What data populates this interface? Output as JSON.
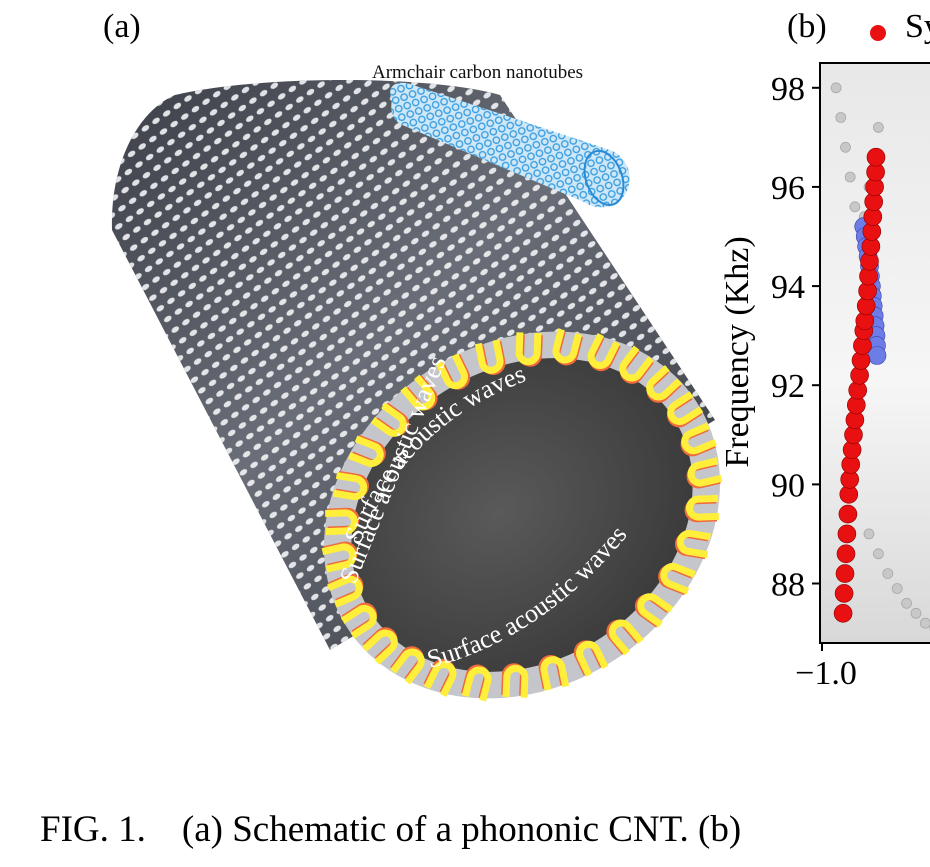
{
  "panel_a": {
    "label": "(a)",
    "inset_title": "Armchair carbon nanotubes",
    "wave_label_1": "Surface acoustic waves",
    "wave_label_2": "Surface acoustic waves",
    "wave_label_3": "Surface acoustic waves"
  },
  "panel_b": {
    "label": "(b)",
    "legend_text": "Sy",
    "colors": {
      "red": "#e81010",
      "blue": "#6d7de8",
      "grey": "#c8c8c8",
      "frame_bg": "#e2e2e2"
    }
  },
  "chart_data": {
    "type": "scatter",
    "title": "",
    "xlabel": "",
    "ylabel": "Frequency (Khz)",
    "xlim": [
      -1.0,
      -0.6
    ],
    "ylim": [
      86.8,
      98.5
    ],
    "x_tick_labels": [
      "−1.0"
    ],
    "y_ticks": [
      88,
      90,
      92,
      94,
      96,
      98
    ],
    "y_tick_labels": [
      "88",
      "90",
      "92",
      "94",
      "96",
      "98"
    ],
    "series": [
      {
        "color": "#e81010",
        "x": [
          -0.955,
          -0.953,
          -0.951,
          -0.949,
          -0.947,
          -0.945,
          -0.943,
          -0.941,
          -0.939,
          -0.936,
          -0.933,
          -0.93,
          -0.927,
          -0.924,
          -0.92,
          -0.917,
          -0.914,
          -0.911,
          -0.909,
          -0.906,
          -0.903,
          -0.901,
          -0.899,
          -0.896,
          -0.894,
          -0.892,
          -0.89,
          -0.888,
          -0.886,
          -0.885
        ],
        "y": [
          87.4,
          87.8,
          88.2,
          88.6,
          89.0,
          89.4,
          89.8,
          90.1,
          90.4,
          90.7,
          91.0,
          91.3,
          91.6,
          91.9,
          92.2,
          92.5,
          92.8,
          93.1,
          93.3,
          93.6,
          93.9,
          94.2,
          94.5,
          94.8,
          95.1,
          95.4,
          95.7,
          96.0,
          96.3,
          96.6
        ]
      },
      {
        "color": "#6d7de8",
        "x": [
          -0.911,
          -0.908,
          -0.905,
          -0.902,
          -0.899,
          -0.897,
          -0.895,
          -0.893,
          -0.891,
          -0.889,
          -0.887,
          -0.885,
          -0.884,
          -0.883
        ],
        "y": [
          95.2,
          95.0,
          94.8,
          94.6,
          94.4,
          94.2,
          94.0,
          93.8,
          93.6,
          93.4,
          93.2,
          93.0,
          92.8,
          92.6
        ]
      },
      {
        "color": "#c8c8c8",
        "x": [
          -0.9,
          -0.88,
          -0.86,
          -0.84,
          -0.82,
          -0.8,
          -0.78,
          -0.76
        ],
        "y": [
          89.0,
          88.6,
          88.2,
          87.9,
          87.6,
          87.4,
          87.2,
          87.1
        ]
      },
      {
        "color": "#c8c8c8",
        "x": [
          -0.97,
          -0.96,
          -0.95,
          -0.94,
          -0.93,
          -0.92,
          -0.91,
          -0.9,
          -0.89,
          -0.88
        ],
        "y": [
          98.0,
          97.4,
          96.8,
          96.2,
          95.6,
          95.2,
          95.4,
          96.0,
          96.6,
          97.2
        ]
      }
    ]
  },
  "caption": {
    "number": "FIG.  1.",
    "text": "(a) Schematic of a phononic CNT. (b)"
  }
}
